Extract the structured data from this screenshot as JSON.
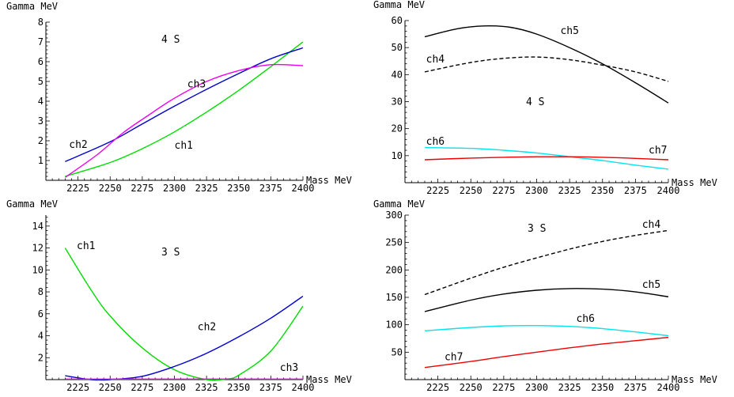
{
  "chart_data": [
    {
      "type": "line",
      "ylabel": "Gamma MeV",
      "xlabel": "Mass MeV",
      "annotation": "4 S",
      "xlim": [
        2200,
        2400
      ],
      "ylim": [
        0,
        8
      ],
      "xticks": [
        2225,
        2250,
        2275,
        2300,
        2325,
        2350,
        2375,
        2400
      ],
      "yticks": [
        1,
        2,
        3,
        4,
        5,
        6,
        7,
        8
      ],
      "series": [
        {
          "name": "ch1",
          "color": "#00dd00",
          "dash": false,
          "x": [
            2215,
            2250,
            2275,
            2300,
            2325,
            2350,
            2375,
            2400
          ],
          "y": [
            0.2,
            0.9,
            1.6,
            2.45,
            3.45,
            4.55,
            5.75,
            7.0
          ],
          "label_at": [
            2300,
            1.6
          ]
        },
        {
          "name": "ch2",
          "color": "#0000cc",
          "dash": false,
          "x": [
            2215,
            2250,
            2275,
            2300,
            2325,
            2350,
            2375,
            2400
          ],
          "y": [
            0.95,
            1.95,
            2.85,
            3.75,
            4.6,
            5.4,
            6.15,
            6.7
          ],
          "label_at": [
            2218,
            1.65
          ]
        },
        {
          "name": "ch3",
          "color": "#ee00ee",
          "dash": false,
          "x": [
            2215,
            2240,
            2260,
            2280,
            2300,
            2325,
            2350,
            2375,
            2400
          ],
          "y": [
            0.15,
            1.3,
            2.4,
            3.3,
            4.15,
            5.0,
            5.55,
            5.85,
            5.8
          ],
          "label_at": [
            2310,
            4.7
          ]
        }
      ]
    },
    {
      "type": "line",
      "ylabel": "Gamma MeV",
      "xlabel": "Mass MeV",
      "annotation": "4 S",
      "xlim": [
        2200,
        2400
      ],
      "ylim": [
        0,
        60
      ],
      "xticks": [
        2225,
        2250,
        2275,
        2300,
        2325,
        2350,
        2375,
        2400
      ],
      "yticks": [
        10,
        20,
        30,
        40,
        50,
        60
      ],
      "series": [
        {
          "name": "ch4",
          "color": "#000000",
          "dash": true,
          "x": [
            2215,
            2250,
            2275,
            2300,
            2325,
            2350,
            2375,
            2400
          ],
          "y": [
            41,
            44.5,
            46,
            46.5,
            45.5,
            43.5,
            41,
            37.5
          ],
          "label_at": [
            2216,
            44.5
          ]
        },
        {
          "name": "ch5",
          "color": "#000000",
          "dash": false,
          "x": [
            2215,
            2240,
            2260,
            2280,
            2300,
            2325,
            2350,
            2375,
            2400
          ],
          "y": [
            54,
            57,
            58,
            57.5,
            55,
            50,
            44,
            37,
            29.5
          ],
          "label_at": [
            2318,
            55
          ]
        },
        {
          "name": "ch6",
          "color": "#00e5ee",
          "dash": false,
          "x": [
            2215,
            2250,
            2275,
            2300,
            2325,
            2350,
            2375,
            2400
          ],
          "y": [
            13,
            12.7,
            12,
            11,
            9.6,
            8.2,
            6.5,
            5
          ],
          "label_at": [
            2216,
            14
          ]
        },
        {
          "name": "ch7",
          "color": "#ee0000",
          "dash": false,
          "x": [
            2215,
            2250,
            2275,
            2300,
            2325,
            2350,
            2375,
            2400
          ],
          "y": [
            8.5,
            9.1,
            9.4,
            9.6,
            9.6,
            9.4,
            9,
            8.5
          ],
          "label_at": [
            2385,
            10.8
          ]
        }
      ]
    },
    {
      "type": "line",
      "ylabel": "Gamma MeV",
      "xlabel": "Mass MeV",
      "annotation": "3 S",
      "xlim": [
        2200,
        2400
      ],
      "ylim": [
        0,
        15
      ],
      "xticks": [
        2225,
        2250,
        2275,
        2300,
        2325,
        2350,
        2375,
        2400
      ],
      "yticks": [
        2,
        4,
        6,
        8,
        10,
        12,
        14
      ],
      "series": [
        {
          "name": "ch1",
          "color": "#00dd00",
          "dash": false,
          "x": [
            2215,
            2235,
            2250,
            2275,
            2300,
            2325,
            2340,
            2350,
            2375,
            2400
          ],
          "y": [
            12,
            8.2,
            5.8,
            2.9,
            0.9,
            0,
            0.05,
            0.4,
            2.6,
            6.7
          ],
          "label_at": [
            2224,
            11.9
          ]
        },
        {
          "name": "ch2",
          "color": "#0000cc",
          "dash": false,
          "x": [
            2215,
            2235,
            2250,
            2275,
            2300,
            2325,
            2350,
            2375,
            2400
          ],
          "y": [
            0.35,
            0,
            0,
            0.3,
            1.2,
            2.4,
            3.9,
            5.6,
            7.6
          ],
          "label_at": [
            2318,
            4.5
          ]
        },
        {
          "name": "ch3",
          "color": "#ee00ee",
          "dash": false,
          "x": [
            2215,
            2250,
            2300,
            2350,
            2400
          ],
          "y": [
            0.05,
            0.05,
            0.05,
            0.05,
            0.05
          ],
          "label_at": [
            2382,
            0.8
          ]
        }
      ]
    },
    {
      "type": "line",
      "ylabel": "Gamma MeV",
      "xlabel": "Mass MeV",
      "annotation": "3 S",
      "xlim": [
        2200,
        2400
      ],
      "ylim": [
        0,
        300
      ],
      "xticks": [
        2225,
        2250,
        2275,
        2300,
        2325,
        2350,
        2375,
        2400
      ],
      "yticks": [
        50,
        100,
        150,
        200,
        250,
        300
      ],
      "series": [
        {
          "name": "ch4",
          "color": "#000000",
          "dash": true,
          "x": [
            2215,
            2250,
            2275,
            2300,
            2325,
            2350,
            2375,
            2400
          ],
          "y": [
            155,
            185,
            205,
            222,
            238,
            252,
            263,
            272
          ],
          "label_at": [
            2380,
            277
          ]
        },
        {
          "name": "ch5",
          "color": "#000000",
          "dash": false,
          "x": [
            2215,
            2250,
            2275,
            2300,
            2325,
            2350,
            2375,
            2400
          ],
          "y": [
            124,
            145,
            156,
            163,
            166,
            165,
            160,
            151
          ],
          "label_at": [
            2380,
            167
          ]
        },
        {
          "name": "ch6",
          "color": "#00e5ee",
          "dash": false,
          "x": [
            2215,
            2250,
            2275,
            2300,
            2325,
            2350,
            2375,
            2400
          ],
          "y": [
            89,
            95,
            98,
            98.5,
            97,
            93,
            87,
            80
          ],
          "label_at": [
            2330,
            105
          ]
        },
        {
          "name": "ch7",
          "color": "#ee0000",
          "dash": false,
          "x": [
            2215,
            2250,
            2275,
            2300,
            2325,
            2350,
            2375,
            2400
          ],
          "y": [
            22,
            33,
            42,
            50,
            58,
            65,
            71,
            77
          ],
          "label_at": [
            2230,
            35
          ]
        }
      ]
    }
  ]
}
